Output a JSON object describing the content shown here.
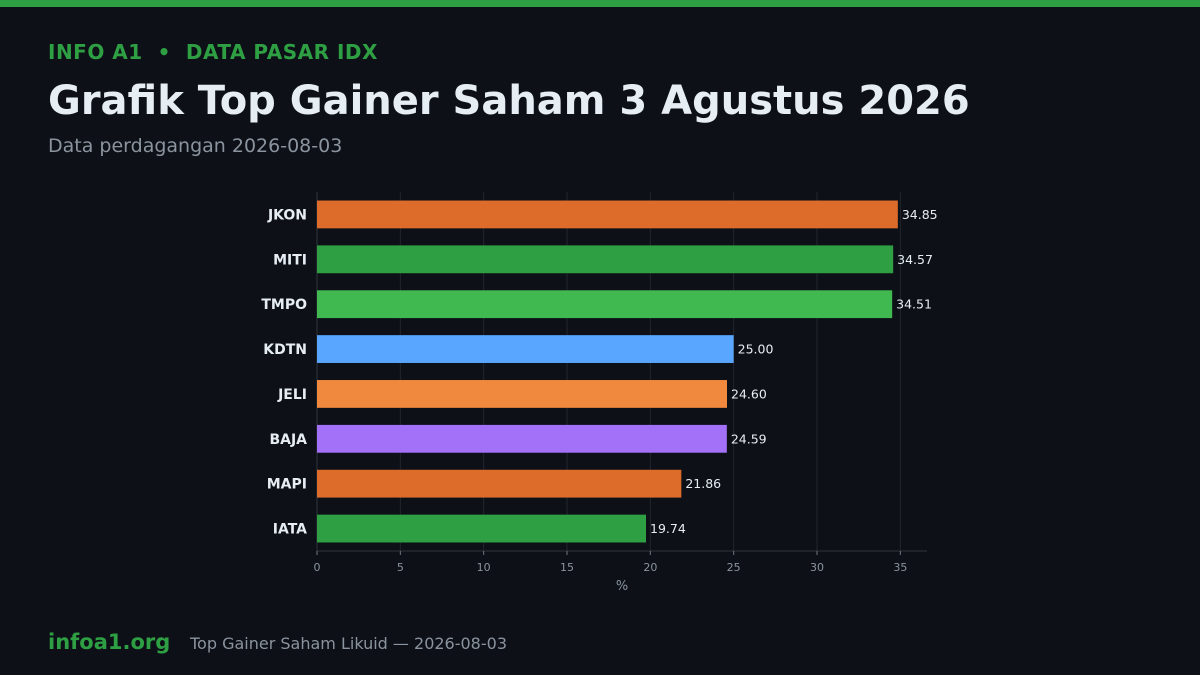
{
  "header": {
    "kicker": "INFO A1  •  DATA PASAR IDX",
    "title": "Grafik Top Gainer Saham 3 Agustus 2026",
    "subtitle": "Data perdagangan 2026-08-03"
  },
  "footer": {
    "site": "infoa1.org",
    "caption": "Top Gainer Saham Likuid — 2026-08-03"
  },
  "chart_data": {
    "type": "bar",
    "orientation": "horizontal",
    "categories": [
      "JKON",
      "MITI",
      "TMPO",
      "KDTN",
      "JELI",
      "BAJA",
      "MAPI",
      "IATA"
    ],
    "values": [
      34.85,
      34.57,
      34.51,
      25.0,
      24.6,
      24.59,
      21.86,
      19.74
    ],
    "value_labels": [
      "34.85",
      "34.57",
      "34.51",
      "25.00",
      "24.60",
      "24.59",
      "21.86",
      "19.74"
    ],
    "colors": [
      "#dd6b2a",
      "#2ea043",
      "#3fb950",
      "#58a6ff",
      "#f0883e",
      "#a371f7",
      "#dd6b2a",
      "#2ea043"
    ],
    "xlabel": "%",
    "ylabel": "",
    "xlim": [
      0,
      36.6
    ],
    "xticks": [
      0,
      5,
      10,
      15,
      20,
      25,
      30,
      35
    ],
    "grid": "vertical",
    "legend": "none"
  }
}
